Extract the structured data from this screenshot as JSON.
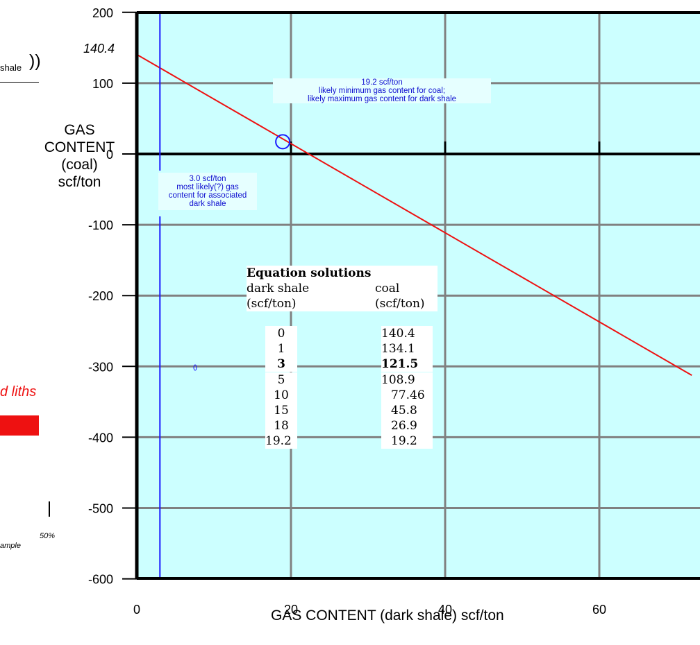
{
  "chart_data": {
    "type": "line",
    "xlabel": "GAS CONTENT (dark shale) scf/ton",
    "ylabel": [
      "GAS",
      "CONTENT",
      "(coal)",
      "scf/ton"
    ],
    "xlim": [
      0,
      72
    ],
    "ylim": [
      -600,
      200
    ],
    "x_ticks": [
      0,
      20,
      40,
      60
    ],
    "y_ticks": [
      200,
      100,
      0,
      -100,
      -200,
      -300,
      -400,
      -500,
      -600
    ],
    "grid": true,
    "background_color": "#ccffff",
    "series": [
      {
        "color": "#ee1111",
        "x": [
          0,
          72
        ],
        "y": [
          140.4,
          -312.6
        ]
      }
    ],
    "vertical_line": {
      "x": 3.0,
      "color": "#1a1aff"
    },
    "highlight_point": {
      "x": 19.2,
      "y": 19.2,
      "color": "#1a1aff"
    },
    "intercept_label": "140.4",
    "annotations": [
      {
        "lines": [
          "19.2 scf/ton",
          "likely minimum gas content for coal;",
          "likely maximum gas content for dark shale"
        ]
      },
      {
        "lines": [
          "3.0 scf/ton",
          "most likely(?) gas",
          "content for associated",
          "dark shale"
        ]
      }
    ],
    "table": {
      "title": "Equation solutions",
      "col1_header": [
        "dark shale",
        "(scf/ton)"
      ],
      "col2_header": [
        "coal",
        "(scf/ton)"
      ],
      "rows": [
        {
          "shale": "0",
          "coal": "140.4",
          "bold": false
        },
        {
          "shale": "1",
          "coal": "134.1",
          "bold": false
        },
        {
          "shale": "3",
          "coal": "121.5",
          "bold": true
        },
        {
          "shale": "5",
          "coal": "108.9",
          "bold": false
        },
        {
          "shale": "10",
          "coal": "77.46",
          "bold": false
        },
        {
          "shale": "15",
          "coal": "45.8",
          "bold": false
        },
        {
          "shale": "18",
          "coal": "26.9",
          "bold": false
        },
        {
          "shale": "19.2",
          "coal": "19.2",
          "bold": false
        }
      ]
    }
  },
  "fragments": {
    "shale_text": "shale",
    "parens": "))",
    "liths_text": "d liths",
    "percent_text": "50%",
    "sample_text": "ample",
    "red_bar_color": "#ee1111"
  }
}
